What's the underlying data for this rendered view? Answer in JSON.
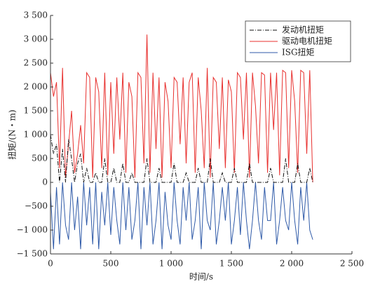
{
  "chart_data": {
    "type": "line",
    "x_label": "时间/s",
    "y_label": "扭矩/(N・m)",
    "x": [
      0,
      25,
      50,
      75,
      100,
      125,
      150,
      175,
      200,
      225,
      250,
      275,
      300,
      325,
      350,
      375,
      400,
      425,
      450,
      475,
      500,
      525,
      550,
      575,
      600,
      625,
      650,
      675,
      700,
      725,
      750,
      775,
      800,
      825,
      850,
      875,
      900,
      925,
      950,
      975,
      1000,
      1025,
      1050,
      1075,
      1100,
      1125,
      1150,
      1175,
      1200,
      1225,
      1250,
      1275,
      1300,
      1325,
      1350,
      1375,
      1400,
      1425,
      1450,
      1475,
      1500,
      1525,
      1550,
      1575,
      1600,
      1625,
      1650,
      1675,
      1700,
      1725,
      1750,
      1775,
      1800,
      1825,
      1850,
      1875,
      1900,
      1925,
      1950,
      1975,
      2000,
      2025,
      2050,
      2075,
      2100,
      2125,
      2150,
      2175
    ],
    "series": [
      {
        "name": "发动机扭矩",
        "color": "#111111",
        "dash": "6 2 1 2",
        "values": [
          1000,
          600,
          800,
          0,
          700,
          0,
          900,
          500,
          0,
          400,
          600,
          0,
          300,
          0,
          0,
          200,
          0,
          0,
          500,
          0,
          0,
          300,
          0,
          0,
          400,
          0,
          0,
          200,
          0,
          0,
          0,
          0,
          500,
          0,
          0,
          0,
          300,
          0,
          0,
          0,
          0,
          400,
          0,
          0,
          0,
          200,
          0,
          0,
          0,
          300,
          0,
          0,
          0,
          500,
          0,
          0,
          0,
          200,
          0,
          0,
          0,
          300,
          0,
          0,
          0,
          0,
          400,
          0,
          0,
          0,
          0,
          0,
          0,
          300,
          0,
          0,
          0,
          0,
          500,
          0,
          0,
          0,
          400,
          0,
          0,
          0,
          300,
          0
        ]
      },
      {
        "name": "驱动电机扭矩",
        "color": "#e8312f",
        "values": [
          2300,
          1800,
          2100,
          300,
          2400,
          100,
          800,
          1500,
          200,
          600,
          1200,
          400,
          2300,
          2200,
          100,
          2200,
          1900,
          300,
          2300,
          150,
          2100,
          600,
          2200,
          900,
          2300,
          200,
          2100,
          1800,
          100,
          2300,
          2200,
          400,
          3100,
          200,
          2300,
          700,
          2200,
          100,
          2100,
          1700,
          300,
          2200,
          2100,
          800,
          2200,
          400,
          2100,
          2300,
          200,
          2200,
          1500,
          300,
          2400,
          100,
          2200,
          2100,
          700,
          2200,
          300,
          2150,
          1900,
          200,
          2300,
          2200,
          900,
          2300,
          100,
          2300,
          1600,
          400,
          2300,
          2250,
          200,
          2300,
          1100,
          2300,
          150,
          2350,
          2300,
          300,
          2350,
          1700,
          200,
          2350,
          2300,
          600,
          2350,
          0
        ]
      },
      {
        "name": "ISG扭矩",
        "color": "#2f5aa8",
        "values": [
          -200,
          -1400,
          -100,
          -1300,
          0,
          -900,
          -1200,
          0,
          -1000,
          -300,
          -1400,
          0,
          -900,
          -100,
          -1300,
          0,
          -1400,
          -200,
          -900,
          0,
          -1100,
          -100,
          -800,
          -1300,
          0,
          -1000,
          -100,
          -1200,
          -800,
          0,
          -1400,
          -100,
          -900,
          0,
          -1300,
          -800,
          0,
          -1400,
          -200,
          -900,
          -1200,
          0,
          -800,
          -1300,
          -100,
          -800,
          0,
          -1200,
          -800,
          -100,
          -1400,
          0,
          -800,
          -1000,
          0,
          -1300,
          -800,
          -100,
          -800,
          0,
          -1300,
          -800,
          -100,
          -1100,
          0,
          -800,
          -1400,
          -800,
          0,
          -800,
          -1200,
          -100,
          -800,
          -800,
          0,
          -1300,
          -800,
          -100,
          -800,
          -1000,
          0,
          -800,
          -1300,
          -100,
          -800,
          0,
          -1000,
          -1200
        ]
      }
    ],
    "draw_order": [
      1,
      2,
      0
    ],
    "xlim": [
      0,
      2500
    ],
    "xticks": [
      0,
      500,
      {
        "value": 1000,
        "label": "1 000"
      },
      {
        "value": 1500,
        "label": "1 500"
      },
      {
        "value": 2000,
        "label": "2 000"
      },
      {
        "value": 2500,
        "label": "2 500"
      }
    ],
    "ylim": [
      -1500,
      3500
    ],
    "yticks": [
      {
        "value": -1500,
        "label": "−1 500"
      },
      {
        "value": -1000,
        "label": "−1 000"
      },
      {
        "value": -500,
        "label": "−500"
      },
      0,
      500,
      {
        "value": 1000,
        "label": "1 000"
      },
      {
        "value": 1500,
        "label": "1 500"
      },
      {
        "value": 2000,
        "label": "2 000"
      },
      {
        "value": 2500,
        "label": "2 500"
      },
      {
        "value": 3000,
        "label": "3 000"
      },
      {
        "value": 3500,
        "label": "3 500"
      }
    ],
    "legend": "upper right"
  }
}
